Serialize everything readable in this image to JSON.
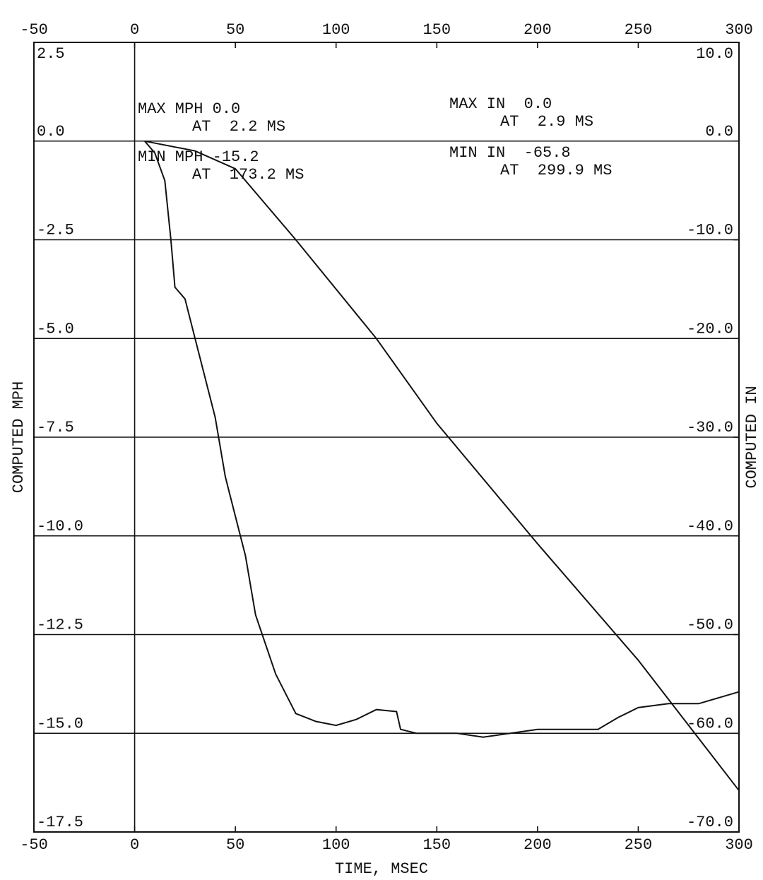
{
  "chart_data": {
    "type": "line",
    "xlabel": "TIME, MSEC",
    "ylabel": "COMPUTED MPH",
    "y2label": "COMPUTED IN",
    "xlim": [
      -50,
      300
    ],
    "xticks": [
      -50,
      0,
      50,
      100,
      150,
      200,
      250,
      300
    ],
    "ylim": [
      -17.5,
      2.5
    ],
    "yticks": [
      {
        "value": -17.5,
        "label": "-17.5"
      },
      {
        "value": -15,
        "label": "-15.0"
      },
      {
        "value": -12.5,
        "label": "-12.5"
      },
      {
        "value": -10,
        "label": "-10.0"
      },
      {
        "value": -7.5,
        "label": "-7.5"
      },
      {
        "value": -5,
        "label": "-5.0"
      },
      {
        "value": -2.5,
        "label": "-2.5"
      },
      {
        "value": 0,
        "label": "0.0"
      },
      2.5
    ],
    "y2lim": [
      -70,
      10
    ],
    "y2ticks": [
      {
        "value": -70,
        "label": "-70.0"
      },
      {
        "value": -60,
        "label": "-60.0"
      },
      {
        "value": -50,
        "label": "-50.0"
      },
      {
        "value": -40,
        "label": "-40.0"
      },
      {
        "value": -30,
        "label": "-30.0"
      },
      {
        "value": -20,
        "label": "-20.0"
      },
      {
        "value": -10,
        "label": "-10.0"
      },
      {
        "value": 0,
        "label": "0.0"
      },
      {
        "value": 10,
        "label": "10.0"
      }
    ],
    "grid": true,
    "annotations": [
      "MAX MPH 0.0",
      "AT  2.2 MS",
      "MIN MPH -15.2",
      "AT  173.2 MS",
      "MAX IN  0.0",
      "AT  2.9 MS",
      "MIN IN  -65.8",
      "AT  299.9 MS"
    ],
    "series": [
      {
        "color": "#111111",
        "x": [
          5,
          10,
          15,
          18,
          20,
          25,
          30,
          35,
          40,
          45,
          50,
          55,
          60,
          70,
          80,
          90,
          100,
          110,
          120,
          130,
          132,
          140,
          160,
          173,
          200,
          230,
          240,
          250,
          265,
          280,
          300
        ],
        "values": [
          0,
          -0.3,
          -1.0,
          -2.5,
          -3.7,
          -4.0,
          -5.0,
          -6.0,
          -7.0,
          -8.5,
          -9.5,
          -10.5,
          -12.0,
          -13.5,
          -14.5,
          -14.7,
          -14.8,
          -14.65,
          -14.4,
          -14.45,
          -14.9,
          -15.0,
          -15.0,
          -15.1,
          -14.9,
          -14.9,
          -14.6,
          -14.35,
          -14.25,
          -14.25,
          -13.95
        ]
      },
      {
        "color": "#111111",
        "axis": "y2",
        "x": [
          5,
          30,
          50,
          80,
          100,
          120,
          150,
          200,
          250,
          300
        ],
        "values": [
          0,
          -1.0,
          -2.8,
          -10.0,
          -15.0,
          -20.0,
          -28.6,
          -40.8,
          -52.6,
          -65.8
        ]
      }
    ]
  }
}
